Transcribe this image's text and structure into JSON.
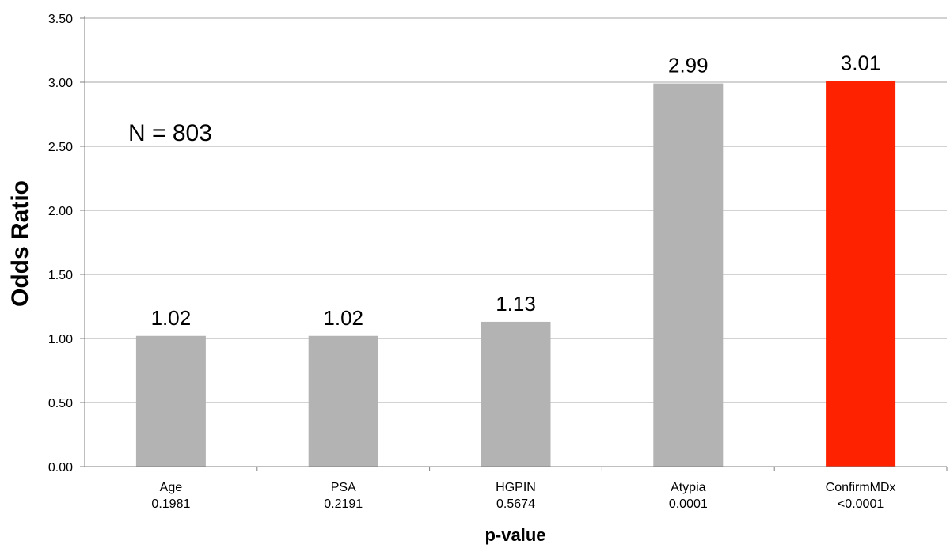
{
  "chart_data": {
    "type": "bar",
    "title": "",
    "ylabel": "Odds Ratio",
    "xlabel": "p-value",
    "ylim": [
      0,
      3.5
    ],
    "y_ticks": [
      "0.00",
      "0.50",
      "1.00",
      "1.50",
      "2.00",
      "2.50",
      "3.00",
      "3.50"
    ],
    "y_tick_values": [
      0,
      0.5,
      1.0,
      1.5,
      2.0,
      2.5,
      3.0,
      3.5
    ],
    "grid": true,
    "categories": [
      {
        "name": "Age",
        "pvalue": "0.1981"
      },
      {
        "name": "PSA",
        "pvalue": "0.2191"
      },
      {
        "name": "HGPIN",
        "pvalue": "0.5674"
      },
      {
        "name": "Atypia",
        "pvalue": "0.0001"
      },
      {
        "name": "ConfirmMDx",
        "pvalue": "<0.0001"
      }
    ],
    "values": [
      1.02,
      1.02,
      1.13,
      2.99,
      3.01
    ],
    "value_labels": [
      "1.02",
      "1.02",
      "1.13",
      "2.99",
      "3.01"
    ],
    "colors": [
      "#b3b3b3",
      "#b3b3b3",
      "#b3b3b3",
      "#b3b3b3",
      "#ff2200"
    ],
    "annotation": "N = 803"
  }
}
